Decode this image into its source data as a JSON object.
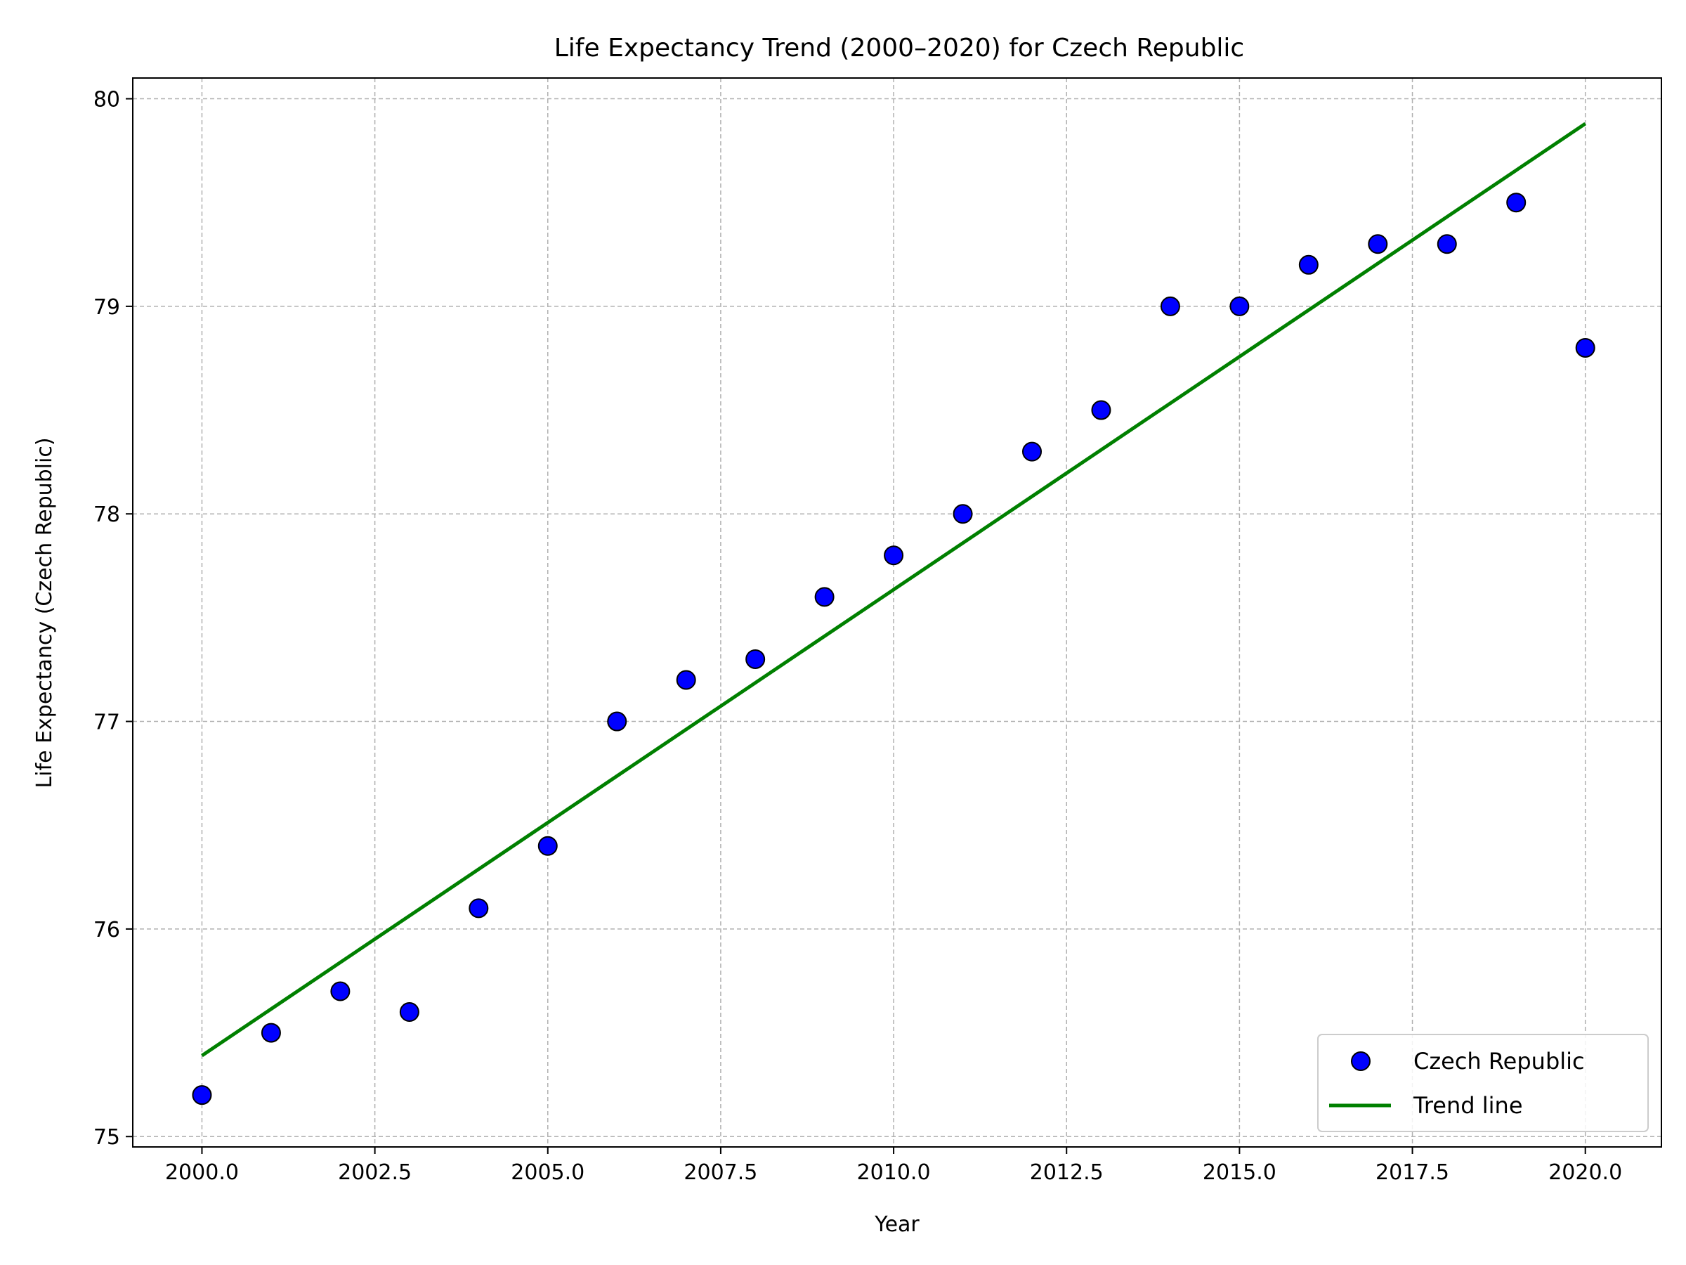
{
  "chart_data": {
    "type": "scatter",
    "title": "Life Expectancy Trend (2000–2020) for Czech Republic",
    "xlabel": "Year",
    "ylabel": "Life Expectancy (Czech Republic)",
    "xlim": [
      1999,
      2021.1
    ],
    "ylim": [
      74.95,
      80.1
    ],
    "x_ticks": [
      2000.0,
      2002.5,
      2005.0,
      2007.5,
      2010.0,
      2012.5,
      2015.0,
      2017.5,
      2020.0
    ],
    "x_tick_labels": [
      "2000.0",
      "2002.5",
      "2005.0",
      "2007.5",
      "2010.0",
      "2012.5",
      "2015.0",
      "2017.5",
      "2020.0"
    ],
    "y_ticks": [
      75,
      76,
      77,
      78,
      79,
      80
    ],
    "y_tick_labels": [
      "75",
      "76",
      "77",
      "78",
      "79",
      "80"
    ],
    "grid": true,
    "legend_position": "lower-right",
    "series": [
      {
        "name": "Czech Republic",
        "kind": "scatter",
        "color": "#0000ff",
        "edge_color": "#000000",
        "x": [
          2000,
          2001,
          2002,
          2003,
          2004,
          2005,
          2006,
          2007,
          2008,
          2009,
          2010,
          2011,
          2012,
          2013,
          2014,
          2015,
          2016,
          2017,
          2018,
          2019,
          2020
        ],
        "y": [
          75.2,
          75.5,
          75.7,
          75.6,
          76.1,
          76.4,
          77.0,
          77.2,
          77.3,
          77.6,
          77.8,
          78.0,
          78.3,
          78.5,
          79.0,
          79.0,
          79.2,
          79.3,
          79.3,
          79.5,
          78.8
        ]
      },
      {
        "name": "Trend line",
        "kind": "line",
        "color": "#008000",
        "x": [
          2000,
          2020
        ],
        "y": [
          75.39,
          79.88
        ]
      }
    ]
  }
}
